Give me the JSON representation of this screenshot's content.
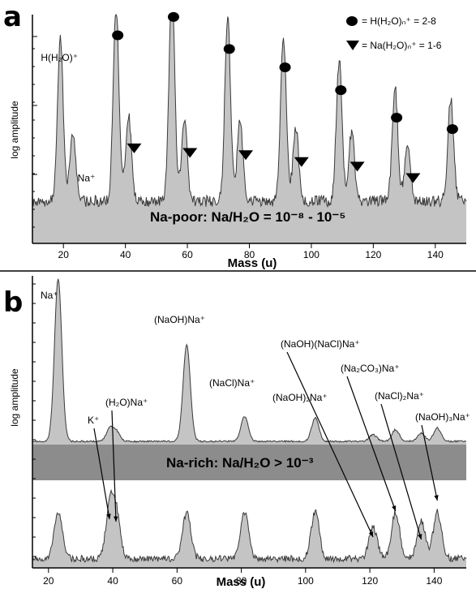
{
  "chart_data": [
    {
      "panel": "a",
      "type": "area",
      "xlabel": "Mass (u)",
      "ylabel": "log amplitude",
      "xlim": [
        10,
        150
      ],
      "xticks": [
        20,
        40,
        60,
        80,
        100,
        120,
        140
      ],
      "y_scale": "log",
      "grid": false,
      "legend_position": "top-right",
      "legend": [
        {
          "marker": "circle",
          "label": "= H(H₂O)ₙ⁺ = 2-8"
        },
        {
          "marker": "triangle-down",
          "label": "= Na(H₂O)ₙ⁺ = 1-6"
        }
      ],
      "regime_label": "Na-poor: Na/H₂O = 10⁻⁸ - 10⁻⁵",
      "peaks": [
        {
          "label": "H(H₂O)⁺",
          "x": 19,
          "h": 0.72
        },
        {
          "label": "Na⁺",
          "x": 23,
          "h": 0.3
        },
        {
          "label": "",
          "x": 37,
          "h": 0.86,
          "series": "H(H2O)n+"
        },
        {
          "label": "",
          "x": 41,
          "h": 0.38,
          "series": "Na(H2O)n+"
        },
        {
          "label": "",
          "x": 55,
          "h": 0.94,
          "series": "H(H2O)n+"
        },
        {
          "label": "",
          "x": 59,
          "h": 0.36,
          "series": "Na(H2O)n+"
        },
        {
          "label": "",
          "x": 73,
          "h": 0.8,
          "series": "H(H2O)n+"
        },
        {
          "label": "",
          "x": 77,
          "h": 0.35,
          "series": "Na(H2O)n+"
        },
        {
          "label": "",
          "x": 91,
          "h": 0.72,
          "series": "H(H2O)n+"
        },
        {
          "label": "",
          "x": 95,
          "h": 0.32,
          "series": "Na(H2O)n+"
        },
        {
          "label": "",
          "x": 109,
          "h": 0.62,
          "series": "H(H2O)n+"
        },
        {
          "label": "",
          "x": 113,
          "h": 0.3,
          "series": "Na(H2O)n+"
        },
        {
          "label": "",
          "x": 127,
          "h": 0.5,
          "series": "H(H2O)n+"
        },
        {
          "label": "",
          "x": 131,
          "h": 0.25,
          "series": "Na(H2O)n+"
        },
        {
          "label": "",
          "x": 145,
          "h": 0.45,
          "series": "H(H2O)n+"
        }
      ]
    },
    {
      "panel": "b",
      "type": "area",
      "xlabel": "Mass (u)",
      "ylabel": "log amplitude",
      "xlim": [
        15,
        150
      ],
      "xticks": [
        20,
        40,
        60,
        80,
        100,
        120,
        140
      ],
      "y_scale": "log",
      "grid": false,
      "regime_label": "Na-rich: Na/H₂O > 10⁻³",
      "peaks": [
        {
          "label": "Na⁺",
          "x": 23,
          "h": 0.98
        },
        {
          "label": "K⁺",
          "x": 39,
          "h": 0.07
        },
        {
          "label": "(H₂O)Na⁺",
          "x": 41,
          "h": 0.06
        },
        {
          "label": "(NaOH)Na⁺",
          "x": 63,
          "h": 0.58
        },
        {
          "label": "(NaCl)Na⁺",
          "x": 81,
          "h": 0.15
        },
        {
          "label": "(NaOH)₂Na⁺",
          "x": 103,
          "h": 0.14
        },
        {
          "label": "(NaOH)(NaCl)Na⁺",
          "x": 121,
          "h": 0.04
        },
        {
          "label": "(Na₂CO₃)Na⁺",
          "x": 128,
          "h": 0.07
        },
        {
          "label": "(NaCl)₂Na⁺",
          "x": 136,
          "h": 0.05
        },
        {
          "label": "(NaOH)₃Na⁺",
          "x": 141,
          "h": 0.08
        }
      ]
    }
  ],
  "labels": {
    "panel_a": "a",
    "panel_b": "b",
    "ylabel_a": "log amplitude",
    "ylabel_b": "log amplitude",
    "xlabel_a": "Mass (u)",
    "xlabel_b": "Mass (u)"
  },
  "colors": {
    "fill": "#c4c4c4",
    "line": "#3a3a3a",
    "band": "#8c8c8c",
    "axis": "#000000"
  }
}
